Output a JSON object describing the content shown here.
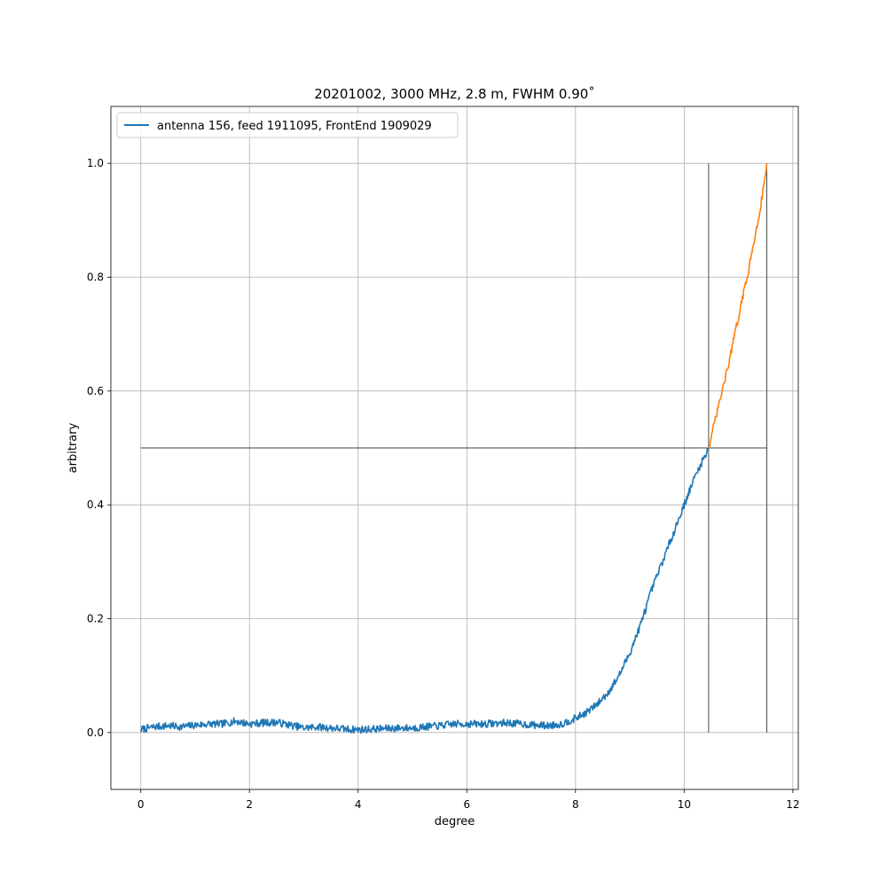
{
  "chart_data": {
    "type": "line",
    "title": "20201002, 3000 MHz, 2.8 m, FWHM 0.90$^\\circ$",
    "title_display": "20201002, 3000 MHz, 2.8 m, FWHM 0.90˚",
    "xlabel": "degree",
    "ylabel": "arbitrary",
    "xlim": [
      -0.55,
      12.1
    ],
    "ylim": [
      -0.1,
      1.1
    ],
    "xticks": [
      0,
      2,
      4,
      6,
      8,
      10,
      12
    ],
    "xtick_labels": [
      "0",
      "2",
      "4",
      "6",
      "8",
      "10",
      "12"
    ],
    "yticks": [
      0.0,
      0.2,
      0.4,
      0.6,
      0.8,
      1.0
    ],
    "ytick_labels": [
      "0.0",
      "0.2",
      "0.4",
      "0.6",
      "0.8",
      "1.0"
    ],
    "grid": true,
    "legend_position": "top-left",
    "legend": [
      "antenna 156, feed 1911095, FrontEnd 1909029"
    ],
    "colors": {
      "primary": "#1f77b4",
      "highlight": "#ff7f0e",
      "reference": "#000000"
    },
    "series": [
      {
        "name": "antenna 156, feed 1911095, FrontEnd 1909029",
        "color": "#1f77b4",
        "x": [
          0.0,
          0.25,
          0.5,
          0.75,
          1.0,
          1.25,
          1.5,
          1.75,
          2.0,
          2.25,
          2.5,
          2.75,
          3.0,
          3.25,
          3.5,
          3.75,
          4.0,
          4.25,
          4.5,
          4.75,
          5.0,
          5.25,
          5.5,
          5.75,
          6.0,
          6.25,
          6.5,
          6.75,
          7.0,
          7.25,
          7.5,
          7.75,
          8.0,
          8.2,
          8.4,
          8.6,
          8.8,
          9.0,
          9.2,
          9.4,
          9.6,
          9.8,
          10.0,
          10.2,
          10.45
        ],
        "y": [
          0.005,
          0.01,
          0.012,
          0.01,
          0.013,
          0.015,
          0.015,
          0.02,
          0.015,
          0.017,
          0.018,
          0.013,
          0.008,
          0.01,
          0.008,
          0.006,
          0.005,
          0.006,
          0.007,
          0.008,
          0.008,
          0.01,
          0.012,
          0.015,
          0.015,
          0.015,
          0.016,
          0.017,
          0.015,
          0.013,
          0.012,
          0.015,
          0.025,
          0.035,
          0.05,
          0.07,
          0.1,
          0.14,
          0.19,
          0.25,
          0.3,
          0.35,
          0.4,
          0.45,
          0.5
        ]
      },
      {
        "name": "",
        "color": "#ff7f0e",
        "x": [
          10.45,
          10.6,
          10.8,
          11.0,
          11.2,
          11.4,
          11.52
        ],
        "y": [
          0.5,
          0.56,
          0.64,
          0.73,
          0.82,
          0.92,
          1.0
        ]
      }
    ],
    "reference_lines": [
      {
        "orientation": "horizontal",
        "y": 0.5,
        "x_start": 0.0,
        "x_end": 11.52
      },
      {
        "orientation": "vertical",
        "x": 10.45,
        "y_start": 0.0,
        "y_end": 1.0
      },
      {
        "orientation": "vertical",
        "x": 11.52,
        "y_start": 0.0,
        "y_end": 1.0
      }
    ]
  }
}
